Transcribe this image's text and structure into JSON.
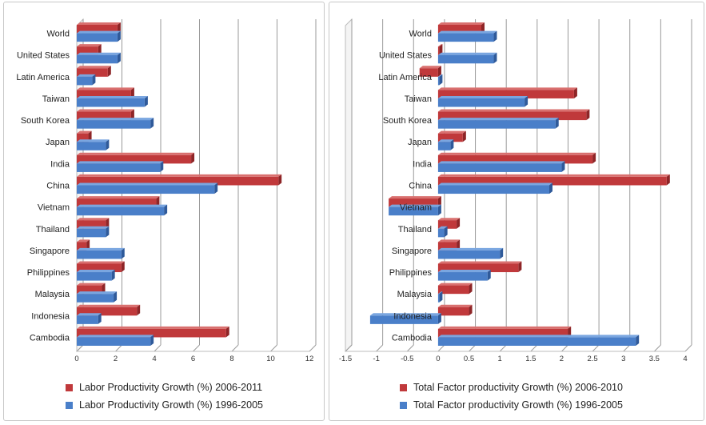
{
  "colors": {
    "red": "#c0393b",
    "blue": "#4a7fc9",
    "axis": "#888888",
    "grid": "#9a9a9a"
  },
  "legends": {
    "left": [
      "Labor Productivity Growth (%) 2006-2011",
      "Labor Productivity Growth (%) 1996-2005"
    ],
    "right": [
      "Total Factor productivity Growth (%) 2006-2010",
      "Total Factor productivity Growth (%) 1996-2005"
    ]
  },
  "chart_data": [
    {
      "type": "bar",
      "orientation": "horizontal",
      "categories": [
        "World",
        "United States",
        "Latin America",
        "Taiwan",
        "South Korea",
        "Japan",
        "India",
        "China",
        "Vietnam",
        "Thailand",
        "Singapore",
        "Philippines",
        "Malaysia",
        "Indonesia",
        "Cambodia"
      ],
      "series": [
        {
          "name": "Labor Productivity Growth (%) 2006-2011",
          "values": [
            2.1,
            1.1,
            1.6,
            2.8,
            2.8,
            0.6,
            5.9,
            10.4,
            4.1,
            1.5,
            0.5,
            2.3,
            1.3,
            3.1,
            7.7
          ]
        },
        {
          "name": "Labor Productivity Growth (%) 1996-2005",
          "values": [
            2.1,
            2.1,
            0.8,
            3.5,
            3.8,
            1.5,
            4.3,
            7.1,
            4.5,
            1.5,
            2.3,
            1.8,
            1.9,
            1.1,
            3.8
          ]
        }
      ],
      "xlim": [
        0,
        12
      ],
      "xticks": [
        "0",
        "2",
        "4",
        "6",
        "8",
        "10",
        "12"
      ],
      "grid": true,
      "legend": "bottom"
    },
    {
      "type": "bar",
      "orientation": "horizontal",
      "categories": [
        "World",
        "United States",
        "Latin America",
        "Taiwan",
        "South Korea",
        "Japan",
        "India",
        "China",
        "Vietnam",
        "Thailand",
        "Singapore",
        "Philippines",
        "Malaysia",
        "Indonesia",
        "Cambodia"
      ],
      "series": [
        {
          "name": "Total Factor productivity Growth (%) 2006-2010",
          "values": [
            0.7,
            0.0,
            -0.3,
            2.2,
            2.4,
            0.4,
            2.5,
            3.7,
            -0.8,
            0.3,
            0.3,
            1.3,
            0.5,
            0.5,
            2.1
          ]
        },
        {
          "name": "Total Factor productivity Growth (%) 1996-2005",
          "values": [
            0.9,
            0.9,
            0.0,
            1.4,
            1.9,
            0.2,
            2.0,
            1.8,
            -0.8,
            0.1,
            1.0,
            0.8,
            0.0,
            -1.1,
            3.2
          ]
        }
      ],
      "xlim": [
        -1.5,
        4
      ],
      "xticks": [
        "-1.5",
        "-1",
        "-0.5",
        "0",
        "0.5",
        "1",
        "1.5",
        "2",
        "2.5",
        "3",
        "3.5",
        "4"
      ],
      "grid": true,
      "legend": "bottom"
    }
  ]
}
